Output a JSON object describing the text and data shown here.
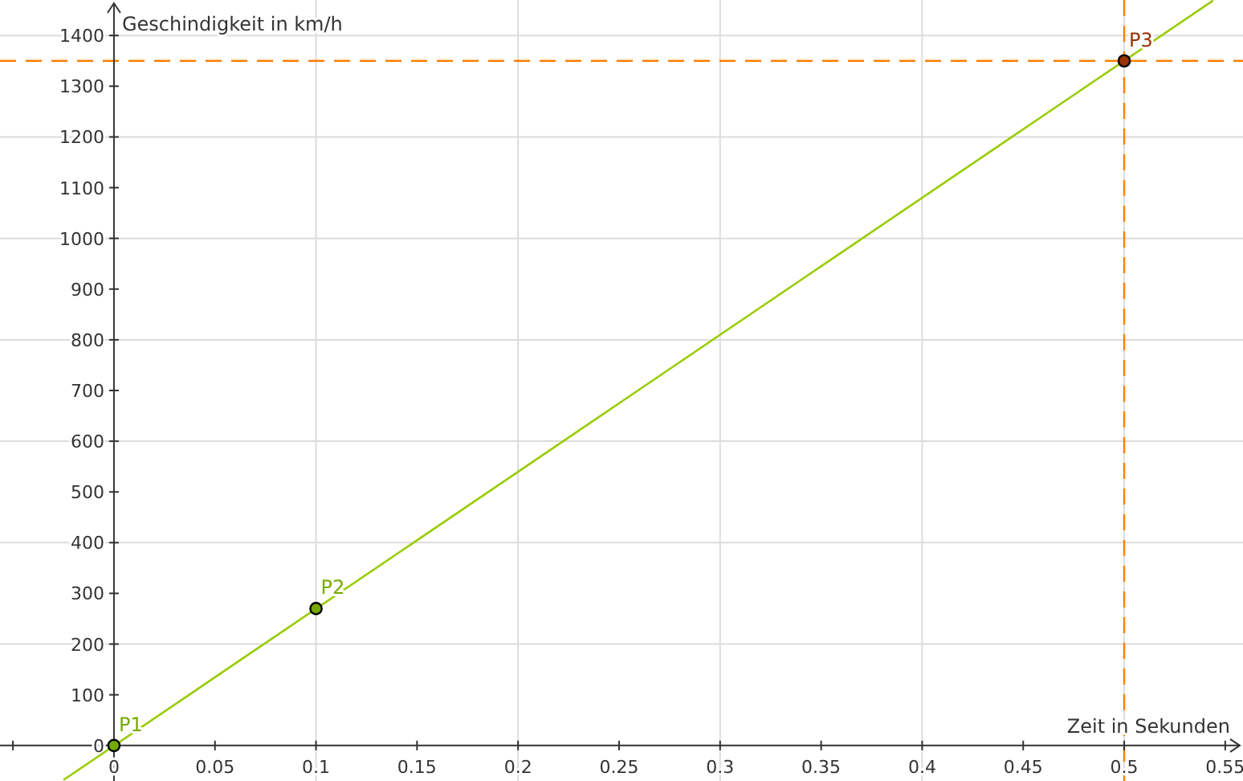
{
  "chart_data": {
    "type": "scatter",
    "xlabel": "Zeit in Sekunden",
    "ylabel": "Geschindigkeit in km/h",
    "xlim": [
      -0.0564,
      0.5588
    ],
    "ylim": [
      -70,
      1470
    ],
    "xticks": [
      {
        "value": -0.05,
        "label": null
      },
      0,
      0.05,
      0.1,
      0.15,
      0.2,
      0.25,
      0.3,
      0.35,
      0.4,
      0.45,
      0.5,
      0.55
    ],
    "yticks": [
      0,
      100,
      200,
      300,
      400,
      500,
      600,
      700,
      800,
      900,
      1000,
      1100,
      1200,
      1300,
      1400
    ],
    "grid": true,
    "series": [
      {
        "type": "line",
        "color": "#99cc00",
        "x": [
          -0.025,
          0.544
        ],
        "values": [
          -68,
          1469
        ]
      },
      {
        "marker": "circle",
        "colors": [
          "#77aa00",
          "#77aa00",
          "#993300"
        ],
        "x": [
          0,
          0.1,
          0.5
        ],
        "values": [
          0,
          270,
          1350
        ]
      }
    ],
    "ref_lines": [
      {
        "axis": "y",
        "value": 1350,
        "color": "#ff7f00",
        "line_style": "dashed"
      },
      {
        "axis": "x",
        "value": 0.5,
        "color": "#ff7f00",
        "line_style": "dashed"
      }
    ],
    "annotations": [
      {
        "text": "P1",
        "x": 0,
        "y": 0
      },
      {
        "text": "P2",
        "x": 0.1,
        "y": 270
      },
      {
        "text": "P3",
        "x": 0.5,
        "y": 1350
      }
    ]
  }
}
